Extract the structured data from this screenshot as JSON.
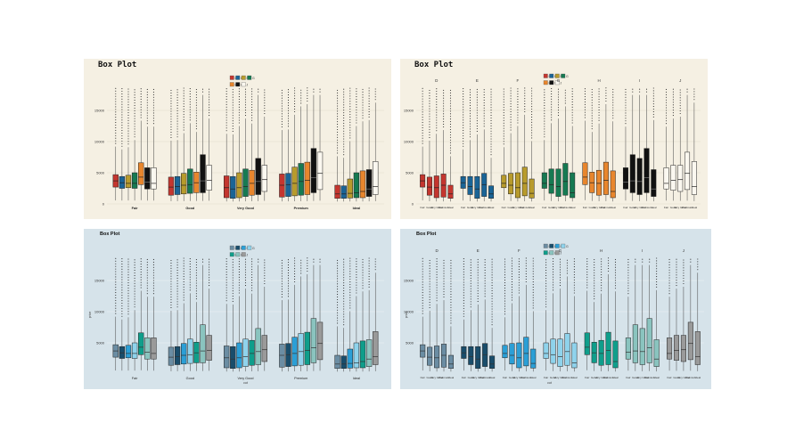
{
  "chart_data": [
    {
      "type": "boxplot",
      "title": "Box Plot",
      "xlabel": "",
      "ylabel": "",
      "ylim": [
        0,
        19000
      ],
      "yticks": [
        "0",
        "5000",
        "10000",
        "15000"
      ],
      "categories": [
        "Fair",
        "Good",
        "Very Good",
        "Premium",
        "Ideal"
      ],
      "legend": [
        "D",
        "E",
        "F",
        "G",
        "H",
        "I",
        "J"
      ],
      "series_colors": [
        "#c4362f",
        "#1a6496",
        "#b89b2c",
        "#167a52",
        "#e8862d",
        "#111111",
        "#fbf8f0"
      ],
      "background": "#f5f0e3",
      "boxes": [
        [
          [
            2700,
            3700,
            4700
          ],
          [
            2500,
            3400,
            4400
          ],
          [
            2600,
            3300,
            4600
          ],
          [
            2500,
            3300,
            5000
          ],
          [
            3100,
            4300,
            6600
          ],
          [
            2400,
            3500,
            5800
          ],
          [
            2400,
            3300,
            5800
          ]
        ],
        [
          [
            1400,
            2700,
            4300
          ],
          [
            1500,
            2800,
            4400
          ],
          [
            1600,
            3000,
            4900
          ],
          [
            1700,
            3100,
            5600
          ],
          [
            1800,
            3400,
            5100
          ],
          [
            1800,
            3700,
            7900
          ],
          [
            2200,
            3800,
            6200
          ]
        ],
        [
          [
            1000,
            2600,
            4500
          ],
          [
            900,
            2400,
            4400
          ],
          [
            1000,
            2600,
            5000
          ],
          [
            1200,
            2800,
            5600
          ],
          [
            1400,
            3300,
            5400
          ],
          [
            1500,
            3600,
            7300
          ],
          [
            2000,
            3900,
            6200
          ]
        ],
        [
          [
            1100,
            3000,
            4800
          ],
          [
            1200,
            3100,
            4900
          ],
          [
            1300,
            3300,
            5900
          ],
          [
            1400,
            3600,
            6500
          ],
          [
            1500,
            3800,
            6700
          ],
          [
            1800,
            4200,
            8900
          ],
          [
            2300,
            4900,
            8300
          ]
        ],
        [
          [
            900,
            1600,
            3000
          ],
          [
            900,
            1600,
            2900
          ],
          [
            950,
            1700,
            4000
          ],
          [
            1000,
            1800,
            5000
          ],
          [
            1000,
            2000,
            5300
          ],
          [
            1200,
            2400,
            5500
          ],
          [
            1500,
            2800,
            6800
          ]
        ]
      ]
    },
    {
      "type": "boxplot",
      "title": "Box Plot",
      "xlabel": "",
      "ylabel": "",
      "ylim": [
        0,
        19000
      ],
      "yticks": [
        "0",
        "5000",
        "10000",
        "15000"
      ],
      "facets": [
        "D",
        "E",
        "F",
        "G",
        "H",
        "I",
        "J"
      ],
      "categories": [
        "Fair",
        "Good",
        "Very Good",
        "Premium",
        "Ideal"
      ],
      "category_tick_text": [
        "Fair",
        "Good",
        "Very Good",
        "Premium",
        "Ideal"
      ],
      "legend": [
        "D",
        "E",
        "F",
        "G",
        "H",
        "I",
        "J"
      ],
      "series_colors": [
        "#c4362f",
        "#1a6496",
        "#b89b2c",
        "#167a52",
        "#e8862d",
        "#111111",
        "#fbf8f0"
      ],
      "background": "#f5f0e3"
    },
    {
      "type": "boxplot",
      "title": "Box Plot",
      "xlabel": "cut",
      "ylabel": "price",
      "ylim": [
        0,
        19000
      ],
      "yticks": [
        "5000",
        "10000",
        "15000"
      ],
      "categories": [
        "Fair",
        "Good",
        "Very Good",
        "Premium",
        "Ideal"
      ],
      "legend": [
        "D",
        "E",
        "F",
        "G",
        "H",
        "I",
        "J"
      ],
      "series_colors": [
        "#6b8da3",
        "#194d6b",
        "#2b9fd6",
        "#8fd3ec",
        "#0f9e8b",
        "#8ac4bf",
        "#9a9a9a"
      ],
      "background": "#d6e3ea"
    },
    {
      "type": "boxplot",
      "title": "Box Plot",
      "xlabel": "cut",
      "ylabel": "price",
      "ylim": [
        0,
        19000
      ],
      "yticks": [
        "5000",
        "10000",
        "15000"
      ],
      "facets": [
        "D",
        "E",
        "F",
        "G",
        "H",
        "I",
        "J"
      ],
      "categories": [
        "Fair",
        "Good",
        "Very Good",
        "Premium",
        "Ideal"
      ],
      "legend": [
        "D",
        "E",
        "F",
        "G",
        "H",
        "I",
        "J"
      ],
      "series_colors": [
        "#6b8da3",
        "#194d6b",
        "#2b9fd6",
        "#8fd3ec",
        "#0f9e8b",
        "#8ac4bf",
        "#9a9a9a"
      ],
      "background": "#d6e3ea"
    }
  ]
}
